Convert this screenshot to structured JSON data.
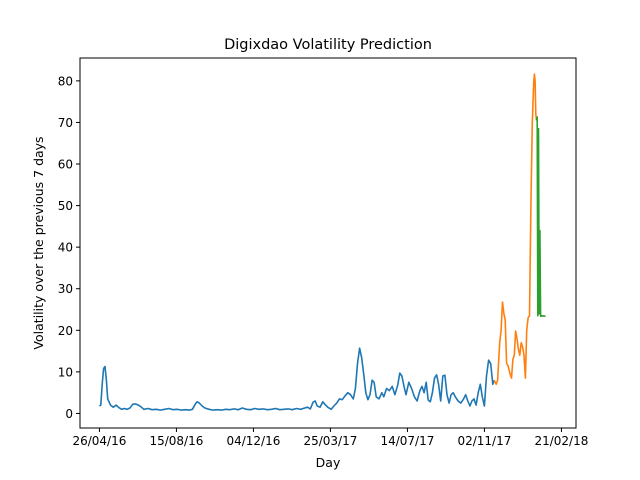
{
  "chart_data": {
    "type": "line",
    "title": "Digixdao Volatility Prediction",
    "xlabel": "Day",
    "ylabel": "Volatility over the previous 7 days",
    "x_ticks": [
      "26/04/16",
      "15/08/16",
      "04/12/16",
      "25/03/17",
      "14/07/17",
      "02/11/17",
      "21/02/18"
    ],
    "y_ticks": [
      0,
      10,
      20,
      30,
      40,
      50,
      60,
      70,
      80
    ],
    "xlim": [
      "2016-03-29",
      "2018-03-14"
    ],
    "ylim": [
      -3.5,
      85.5
    ],
    "grid": false,
    "legend": "none",
    "series": [
      {
        "color": "#1f77b4",
        "points": [
          [
            "2016-04-26",
            1.8
          ],
          [
            "2016-04-28",
            2.0
          ],
          [
            "2016-04-30",
            7.0
          ],
          [
            "2016-05-02",
            10.8
          ],
          [
            "2016-05-04",
            11.3
          ],
          [
            "2016-05-06",
            8.0
          ],
          [
            "2016-05-08",
            3.5
          ],
          [
            "2016-05-12",
            2.0
          ],
          [
            "2016-05-16",
            1.5
          ],
          [
            "2016-05-20",
            2.0
          ],
          [
            "2016-05-24",
            1.4
          ],
          [
            "2016-05-28",
            1.0
          ],
          [
            "2016-06-01",
            1.2
          ],
          [
            "2016-06-05",
            1.0
          ],
          [
            "2016-06-09",
            1.3
          ],
          [
            "2016-06-13",
            2.2
          ],
          [
            "2016-06-17",
            2.3
          ],
          [
            "2016-06-21",
            2.0
          ],
          [
            "2016-06-25",
            1.6
          ],
          [
            "2016-06-29",
            1.0
          ],
          [
            "2016-07-05",
            1.2
          ],
          [
            "2016-07-11",
            0.9
          ],
          [
            "2016-07-17",
            1.0
          ],
          [
            "2016-07-23",
            0.8
          ],
          [
            "2016-07-29",
            1.0
          ],
          [
            "2016-08-04",
            1.2
          ],
          [
            "2016-08-10",
            0.9
          ],
          [
            "2016-08-16",
            1.0
          ],
          [
            "2016-08-22",
            0.8
          ],
          [
            "2016-08-28",
            0.9
          ],
          [
            "2016-09-03",
            0.8
          ],
          [
            "2016-09-07",
            1.0
          ],
          [
            "2016-09-11",
            2.2
          ],
          [
            "2016-09-14",
            2.8
          ],
          [
            "2016-09-17",
            2.5
          ],
          [
            "2016-09-21",
            1.8
          ],
          [
            "2016-09-25",
            1.3
          ],
          [
            "2016-10-01",
            1.0
          ],
          [
            "2016-10-07",
            0.8
          ],
          [
            "2016-10-13",
            0.9
          ],
          [
            "2016-10-19",
            0.8
          ],
          [
            "2016-10-25",
            1.0
          ],
          [
            "2016-10-31",
            0.9
          ],
          [
            "2016-11-06",
            1.1
          ],
          [
            "2016-11-12",
            0.9
          ],
          [
            "2016-11-18",
            1.3
          ],
          [
            "2016-11-24",
            1.0
          ],
          [
            "2016-11-30",
            0.9
          ],
          [
            "2016-12-06",
            1.2
          ],
          [
            "2016-12-12",
            1.0
          ],
          [
            "2016-12-18",
            1.1
          ],
          [
            "2016-12-24",
            0.9
          ],
          [
            "2016-12-30",
            1.0
          ],
          [
            "2017-01-05",
            1.2
          ],
          [
            "2017-01-11",
            0.9
          ],
          [
            "2017-01-17",
            1.0
          ],
          [
            "2017-01-23",
            1.1
          ],
          [
            "2017-01-29",
            0.9
          ],
          [
            "2017-02-04",
            1.2
          ],
          [
            "2017-02-10",
            1.0
          ],
          [
            "2017-02-16",
            1.3
          ],
          [
            "2017-02-20",
            1.5
          ],
          [
            "2017-02-24",
            1.1
          ],
          [
            "2017-02-28",
            2.7
          ],
          [
            "2017-03-03",
            3.0
          ],
          [
            "2017-03-06",
            1.8
          ],
          [
            "2017-03-10",
            1.5
          ],
          [
            "2017-03-14",
            2.8
          ],
          [
            "2017-03-17",
            2.2
          ],
          [
            "2017-03-21",
            1.5
          ],
          [
            "2017-03-26",
            1.0
          ],
          [
            "2017-03-30",
            1.8
          ],
          [
            "2017-04-03",
            2.5
          ],
          [
            "2017-04-07",
            3.5
          ],
          [
            "2017-04-11",
            3.3
          ],
          [
            "2017-04-15",
            4.2
          ],
          [
            "2017-04-19",
            5.0
          ],
          [
            "2017-04-23",
            4.5
          ],
          [
            "2017-04-27",
            3.5
          ],
          [
            "2017-04-30",
            6.0
          ],
          [
            "2017-05-03",
            12.0
          ],
          [
            "2017-05-06",
            15.7
          ],
          [
            "2017-05-09",
            13.5
          ],
          [
            "2017-05-12",
            9.5
          ],
          [
            "2017-05-15",
            5.0
          ],
          [
            "2017-05-18",
            3.3
          ],
          [
            "2017-05-21",
            4.5
          ],
          [
            "2017-05-24",
            8.0
          ],
          [
            "2017-05-27",
            7.5
          ],
          [
            "2017-05-30",
            4.0
          ],
          [
            "2017-06-03",
            3.5
          ],
          [
            "2017-06-07",
            5.0
          ],
          [
            "2017-06-10",
            4.0
          ],
          [
            "2017-06-14",
            6.0
          ],
          [
            "2017-06-18",
            5.5
          ],
          [
            "2017-06-22",
            6.5
          ],
          [
            "2017-06-26",
            4.5
          ],
          [
            "2017-06-30",
            6.8
          ],
          [
            "2017-07-03",
            9.7
          ],
          [
            "2017-07-06",
            9.0
          ],
          [
            "2017-07-09",
            6.5
          ],
          [
            "2017-07-12",
            4.5
          ],
          [
            "2017-07-16",
            7.5
          ],
          [
            "2017-07-20",
            6.0
          ],
          [
            "2017-07-24",
            4.0
          ],
          [
            "2017-07-28",
            3.0
          ],
          [
            "2017-08-01",
            5.5
          ],
          [
            "2017-08-04",
            6.5
          ],
          [
            "2017-08-07",
            5.0
          ],
          [
            "2017-08-10",
            7.5
          ],
          [
            "2017-08-13",
            3.2
          ],
          [
            "2017-08-16",
            2.8
          ],
          [
            "2017-08-19",
            5.0
          ],
          [
            "2017-08-22",
            8.5
          ],
          [
            "2017-08-25",
            9.3
          ],
          [
            "2017-08-28",
            7.0
          ],
          [
            "2017-08-31",
            3.0
          ],
          [
            "2017-09-03",
            9.0
          ],
          [
            "2017-09-06",
            9.2
          ],
          [
            "2017-09-09",
            4.5
          ],
          [
            "2017-09-12",
            2.5
          ],
          [
            "2017-09-15",
            4.5
          ],
          [
            "2017-09-18",
            5.0
          ],
          [
            "2017-09-21",
            4.0
          ],
          [
            "2017-09-25",
            3.0
          ],
          [
            "2017-09-29",
            2.5
          ],
          [
            "2017-10-03",
            3.5
          ],
          [
            "2017-10-06",
            4.5
          ],
          [
            "2017-10-09",
            3.0
          ],
          [
            "2017-10-12",
            1.8
          ],
          [
            "2017-10-15",
            3.0
          ],
          [
            "2017-10-18",
            3.5
          ],
          [
            "2017-10-21",
            2.0
          ],
          [
            "2017-10-24",
            5.0
          ],
          [
            "2017-10-27",
            7.0
          ],
          [
            "2017-10-30",
            4.0
          ],
          [
            "2017-11-02",
            1.8
          ],
          [
            "2017-11-05",
            9.0
          ],
          [
            "2017-11-08",
            12.8
          ],
          [
            "2017-11-11",
            12.0
          ],
          [
            "2017-11-14",
            7.0
          ],
          [
            "2017-11-16",
            8.0
          ]
        ]
      },
      {
        "color": "#ff7f0e",
        "points": [
          [
            "2017-11-16",
            8.0
          ],
          [
            "2017-11-19",
            7.0
          ],
          [
            "2017-11-21",
            8.0
          ],
          [
            "2017-11-24",
            17.0
          ],
          [
            "2017-11-26",
            20.0
          ],
          [
            "2017-11-28",
            26.8
          ],
          [
            "2017-11-30",
            24.0
          ],
          [
            "2017-12-02",
            22.5
          ],
          [
            "2017-12-04",
            12.0
          ],
          [
            "2017-12-06",
            11.5
          ],
          [
            "2017-12-09",
            9.5
          ],
          [
            "2017-12-11",
            8.5
          ],
          [
            "2017-12-13",
            13.0
          ],
          [
            "2017-12-15",
            14.0
          ],
          [
            "2017-12-17",
            19.8
          ],
          [
            "2017-12-19",
            18.0
          ],
          [
            "2017-12-21",
            15.5
          ],
          [
            "2017-12-23",
            14.0
          ],
          [
            "2017-12-25",
            17.0
          ],
          [
            "2017-12-27",
            16.0
          ],
          [
            "2017-12-29",
            14.0
          ],
          [
            "2017-12-31",
            8.5
          ],
          [
            "2018-01-02",
            20.0
          ],
          [
            "2018-01-04",
            23.0
          ],
          [
            "2018-01-06",
            23.5
          ],
          [
            "2018-01-08",
            50.0
          ],
          [
            "2018-01-10",
            70.0
          ],
          [
            "2018-01-12",
            79.5
          ],
          [
            "2018-01-13",
            81.6
          ],
          [
            "2018-01-14",
            80.0
          ],
          [
            "2018-01-15",
            72.0
          ],
          [
            "2018-01-16",
            70.5
          ]
        ]
      },
      {
        "color": "#2ca02c",
        "points": [
          [
            "2018-01-16",
            70.5
          ],
          [
            "2018-01-17",
            71.3
          ],
          [
            "2018-01-18",
            23.5
          ],
          [
            "2018-01-19",
            68.5
          ],
          [
            "2018-01-20",
            24.0
          ],
          [
            "2018-01-21",
            44.0
          ],
          [
            "2018-01-22",
            23.4
          ],
          [
            "2018-01-24",
            23.5
          ],
          [
            "2018-01-27",
            23.4
          ],
          [
            "2018-01-29",
            23.4
          ]
        ]
      }
    ]
  }
}
